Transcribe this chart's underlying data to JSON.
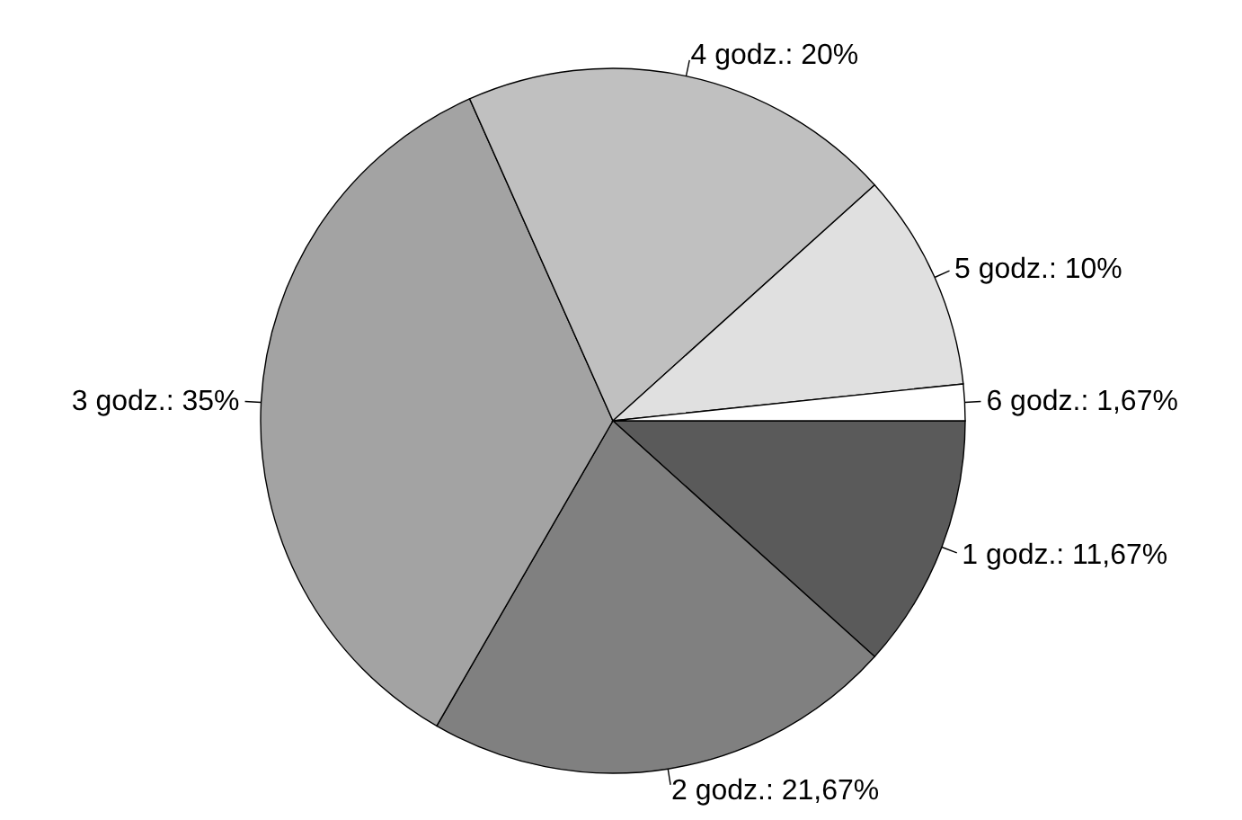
{
  "chart_data": {
    "type": "pie",
    "categories": [
      "1 godz.",
      "2 godz.",
      "3 godz.",
      "4 godz.",
      "5 godz.",
      "6 godz."
    ],
    "values": [
      11.67,
      21.67,
      35,
      20,
      10,
      1.67
    ],
    "value_labels": [
      "11,67%",
      "21,67%",
      "35%",
      "20%",
      "10%",
      "1,67%"
    ],
    "colors": [
      "#5a5a5a",
      "#808080",
      "#a3a3a3",
      "#c0c0c0",
      "#e0e0e0",
      "#ffffff"
    ]
  }
}
